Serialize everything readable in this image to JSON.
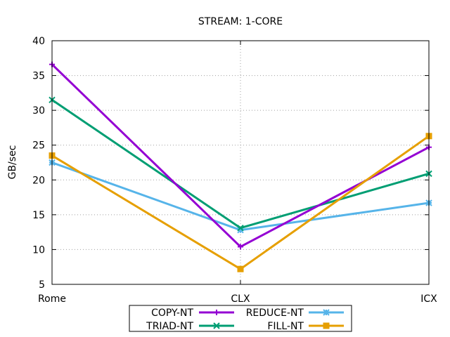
{
  "chart_data": {
    "type": "line",
    "title": "STREAM: 1-CORE",
    "xlabel": "",
    "ylabel": "GB/sec",
    "categories": [
      "Rome",
      "CLX",
      "ICX"
    ],
    "ylim": [
      5,
      40
    ],
    "yticks": [
      5,
      10,
      15,
      20,
      25,
      30,
      35,
      40
    ],
    "grid": true,
    "legend_position": "bottom",
    "series": [
      {
        "name": "COPY-NT",
        "values": [
          36.6,
          10.4,
          24.7
        ],
        "color": "#9400d3",
        "marker": "plus"
      },
      {
        "name": "REDUCE-NT",
        "values": [
          22.5,
          12.8,
          16.7
        ],
        "color": "#56b4e9",
        "marker": "star"
      },
      {
        "name": "TRIAD-NT",
        "values": [
          31.5,
          13.1,
          20.9
        ],
        "color": "#009e73",
        "marker": "cross"
      },
      {
        "name": "FILL-NT",
        "values": [
          23.5,
          7.2,
          26.3
        ],
        "color": "#e69f00",
        "marker": "square"
      }
    ]
  }
}
